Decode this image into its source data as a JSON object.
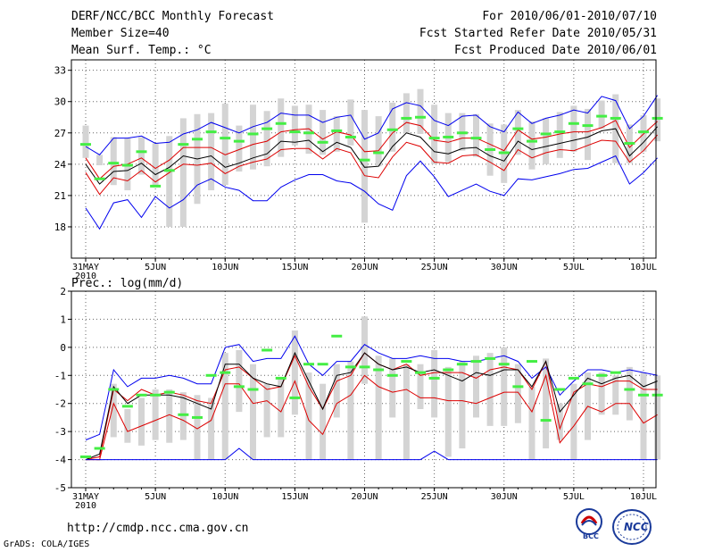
{
  "header": {
    "title": "DERF/NCC/BCC Monthly Forecast",
    "member_size": "Member Size=40",
    "variable": "Mean Surf. Temp.: °C",
    "period": "For 2010/06/01-2010/07/10",
    "started": "Fcst Started Refer Date 2010/05/31",
    "produced": "Fcst Produced Date 2010/06/01"
  },
  "footer": {
    "url": "http://cmdp.ncc.cma.gov.cn",
    "grads": "GrADS: COLA/IGES",
    "logo_bcc": "BCC",
    "logo_ncc": "NCC"
  },
  "colors": {
    "envelope": "#0000ee",
    "spread": "#dd0000",
    "mean": "#000000",
    "box": "#d4d4d4",
    "observed": "#44ee44"
  },
  "chart_data": [
    {
      "type": "box",
      "title": "Mean Surf. Temp.: °C",
      "x_tick_labels": [
        "31MAY\n2010",
        "5JUN",
        "10JUN",
        "15JUN",
        "20JUN",
        "25JUN",
        "30JUN",
        "5JUL",
        "10JUL"
      ],
      "x_tick_index": [
        0,
        5,
        10,
        15,
        20,
        25,
        30,
        35,
        40
      ],
      "ylim": [
        15,
        34
      ],
      "yticks": [
        18,
        21,
        24,
        27,
        30,
        33
      ],
      "days": 40,
      "grid": "dotted",
      "series": [
        {
          "name": "max",
          "color": "blue",
          "values": [
            25.7,
            24.9,
            26.5,
            26.5,
            26.7,
            26.0,
            26.1,
            26.9,
            27.3,
            28.0,
            27.5,
            27.0,
            27.6,
            28.0,
            28.9,
            28.7,
            28.7,
            28.0,
            28.5,
            28.7,
            26.4,
            27.0,
            29.3,
            29.9,
            29.6,
            28.2,
            27.7,
            28.6,
            28.7,
            27.6,
            27.1,
            29.0,
            27.9,
            28.4,
            28.7,
            29.2,
            28.9,
            30.5,
            30.1,
            27.4,
            28.6,
            30.6
          ]
        },
        {
          "name": "upper",
          "color": "red",
          "values": [
            24.6,
            22.6,
            23.8,
            24.0,
            24.6,
            23.6,
            24.4,
            25.6,
            25.6,
            25.6,
            24.9,
            25.4,
            25.9,
            26.2,
            27.1,
            27.3,
            27.4,
            26.4,
            27.1,
            26.8,
            25.2,
            25.3,
            27.0,
            28.0,
            27.7,
            26.3,
            26.1,
            26.5,
            26.5,
            25.9,
            25.3,
            27.3,
            26.4,
            26.6,
            26.9,
            27.1,
            27.1,
            27.5,
            28.2,
            25.6,
            26.9,
            28.1
          ]
        },
        {
          "name": "mean",
          "color": "black",
          "values": [
            24.0,
            22.1,
            23.3,
            23.4,
            24.1,
            23.0,
            23.7,
            24.8,
            24.5,
            24.8,
            23.7,
            24.1,
            24.6,
            25.0,
            26.2,
            26.1,
            26.3,
            25.2,
            26.1,
            25.6,
            23.7,
            23.8,
            25.7,
            27.0,
            26.6,
            25.2,
            25.0,
            25.5,
            25.6,
            24.8,
            24.3,
            26.2,
            25.4,
            25.7,
            26.0,
            26.3,
            26.6,
            27.2,
            27.4,
            24.8,
            26.1,
            27.6
          ]
        },
        {
          "name": "lower",
          "color": "red",
          "values": [
            23.2,
            21.1,
            22.7,
            22.4,
            23.4,
            22.3,
            23.2,
            24.0,
            23.9,
            24.1,
            23.1,
            23.8,
            24.2,
            24.5,
            25.4,
            25.5,
            25.5,
            24.5,
            25.5,
            25.1,
            22.9,
            22.7,
            24.7,
            26.1,
            25.7,
            24.2,
            24.1,
            24.8,
            24.9,
            24.2,
            23.4,
            25.4,
            24.6,
            25.1,
            25.4,
            25.3,
            25.8,
            26.3,
            26.2,
            24.2,
            25.3,
            26.8
          ]
        },
        {
          "name": "min",
          "color": "blue",
          "values": [
            19.8,
            17.8,
            20.3,
            20.6,
            18.9,
            20.9,
            19.8,
            20.6,
            22.0,
            22.6,
            21.8,
            21.5,
            20.5,
            20.5,
            21.8,
            22.5,
            23.0,
            23.0,
            22.4,
            22.2,
            21.4,
            20.2,
            19.6,
            22.9,
            24.3,
            22.8,
            20.9,
            21.5,
            22.1,
            21.4,
            21.0,
            22.6,
            22.5,
            22.8,
            23.1,
            23.5,
            23.6,
            24.2,
            24.8,
            22.1,
            23.2,
            24.6
          ]
        },
        {
          "name": "box_high",
          "color": "gray",
          "values": [
            27.7,
            24.9,
            26.6,
            26.5,
            26.6,
            26.0,
            26.7,
            28.4,
            28.8,
            28.9,
            29.8,
            27.7,
            29.7,
            29.1,
            30.3,
            29.6,
            29.7,
            29.2,
            28.6,
            30.2,
            29.2,
            28.6,
            29.9,
            30.8,
            31.2,
            29.7,
            28.9,
            28.9,
            28.8,
            27.9,
            27.8,
            29.2,
            28.1,
            28.4,
            29.0,
            29.6,
            29.3,
            30.1,
            30.7,
            27.8,
            28.7,
            30.3
          ]
        },
        {
          "name": "box_low",
          "color": "gray",
          "values": [
            24.6,
            23.9,
            22.0,
            21.5,
            23.0,
            22.0,
            18.0,
            18.0,
            20.2,
            21.5,
            22.0,
            23.3,
            23.5,
            23.8,
            24.7,
            25.8,
            25.0,
            24.9,
            25.2,
            25.8,
            18.4,
            23.8,
            25.2,
            27.0,
            26.9,
            24.0,
            24.2,
            25.3,
            24.7,
            22.9,
            22.2,
            24.9,
            23.5,
            24.0,
            24.6,
            25.2,
            24.4,
            27.4,
            24.1,
            24.1,
            25.2,
            26.2
          ]
        },
        {
          "name": "observed",
          "color": "green",
          "values": [
            25.9,
            22.6,
            24.1,
            23.9,
            25.2,
            21.9,
            23.4,
            25.9,
            26.4,
            27.1,
            26.5,
            26.2,
            26.9,
            27.4,
            27.9,
            27.1,
            27.0,
            26.1,
            27.2,
            26.6,
            24.4,
            25.1,
            27.3,
            28.4,
            28.5,
            26.5,
            26.6,
            27.0,
            26.5,
            25.4,
            25.1,
            27.4,
            26.2,
            26.9,
            27.1,
            27.9,
            27.7,
            28.6,
            28.4,
            26.0,
            27.1,
            28.4
          ]
        }
      ]
    },
    {
      "type": "box",
      "title": "Prec.: log(mm/d)",
      "x_tick_labels": [
        "31MAY\n2010",
        "5JUN",
        "10JUN",
        "15JUN",
        "20JUN",
        "25JUN",
        "30JUN",
        "5JUL",
        "10JUL"
      ],
      "x_tick_index": [
        0,
        5,
        10,
        15,
        20,
        25,
        30,
        35,
        40
      ],
      "ylim": [
        -5,
        2
      ],
      "yticks": [
        -5,
        -4,
        -3,
        -2,
        -1,
        0,
        1,
        2
      ],
      "days": 40,
      "grid": "dotted",
      "series": [
        {
          "name": "max",
          "color": "blue",
          "values": [
            -3.3,
            -3.1,
            -0.8,
            -1.4,
            -1.1,
            -1.1,
            -1.0,
            -1.1,
            -1.3,
            -1.3,
            -0.0,
            0.1,
            -0.5,
            -0.4,
            -0.4,
            0.4,
            -0.6,
            -1.0,
            -0.5,
            -0.5,
            0.1,
            -0.2,
            -0.4,
            -0.4,
            -0.3,
            -0.4,
            -0.4,
            -0.5,
            -0.5,
            -0.4,
            -0.3,
            -0.5,
            -1.1,
            -0.7,
            -1.7,
            -1.2,
            -0.8,
            -0.8,
            -0.9,
            -0.8,
            -0.9,
            -1.0
          ]
        },
        {
          "name": "upper",
          "color": "red",
          "values": [
            -4.0,
            -3.9,
            -1.5,
            -1.9,
            -1.5,
            -1.7,
            -1.6,
            -1.7,
            -1.9,
            -2.0,
            -0.8,
            -0.7,
            -1.1,
            -1.5,
            -1.4,
            -0.3,
            -1.4,
            -2.2,
            -1.2,
            -1.0,
            -0.2,
            -0.6,
            -0.8,
            -0.6,
            -1.0,
            -0.9,
            -0.9,
            -0.9,
            -1.1,
            -0.8,
            -0.7,
            -0.8,
            -1.5,
            -0.5,
            -2.9,
            -1.6,
            -1.3,
            -1.4,
            -1.2,
            -1.2,
            -1.5,
            -1.5
          ]
        },
        {
          "name": "mean",
          "color": "black",
          "values": [
            -4.0,
            -3.8,
            -1.4,
            -2.0,
            -1.7,
            -1.7,
            -1.7,
            -1.8,
            -2.0,
            -2.2,
            -0.6,
            -0.6,
            -1.1,
            -1.3,
            -1.4,
            -0.2,
            -1.2,
            -2.2,
            -1.0,
            -0.9,
            -0.2,
            -0.6,
            -0.8,
            -0.7,
            -0.9,
            -0.8,
            -1.0,
            -1.2,
            -0.9,
            -1.0,
            -0.8,
            -0.8,
            -1.4,
            -0.5,
            -2.3,
            -1.7,
            -1.1,
            -1.3,
            -1.1,
            -1.0,
            -1.4,
            -1.2
          ]
        },
        {
          "name": "lower",
          "color": "red",
          "values": [
            -4.0,
            -4.0,
            -2.0,
            -3.0,
            -2.8,
            -2.6,
            -2.4,
            -2.6,
            -2.9,
            -2.6,
            -1.3,
            -1.3,
            -2.0,
            -1.9,
            -2.3,
            -1.2,
            -2.6,
            -3.1,
            -2.0,
            -1.7,
            -1.0,
            -1.4,
            -1.6,
            -1.5,
            -1.8,
            -1.8,
            -1.9,
            -1.9,
            -2.0,
            -1.8,
            -1.6,
            -1.6,
            -2.3,
            -1.0,
            -3.4,
            -2.8,
            -2.1,
            -2.3,
            -2.0,
            -2.0,
            -2.7,
            -2.4
          ]
        },
        {
          "name": "min",
          "color": "blue",
          "values": [
            -4.0,
            -4.0,
            -4.0,
            -4.0,
            -4.0,
            -4.0,
            -4.0,
            -4.0,
            -4.0,
            -4.0,
            -4.0,
            -3.6,
            -4.0,
            -4.0,
            -4.0,
            -4.0,
            -4.0,
            -4.0,
            -4.0,
            -4.0,
            -4.0,
            -4.0,
            -4.0,
            -4.0,
            -4.0,
            -3.7,
            -4.0,
            -4.0,
            -4.0,
            -4.0,
            -4.0,
            -4.0,
            -4.0,
            -4.0,
            -4.0,
            -4.0,
            -4.0,
            -4.0,
            -4.0,
            -4.0,
            -4.0,
            -4.0
          ]
        },
        {
          "name": "box_high",
          "color": "gray",
          "values": [
            -4.0,
            -4.0,
            -1.3,
            -2.2,
            -1.8,
            -1.5,
            -1.5,
            -1.6,
            -1.7,
            -1.8,
            -0.2,
            -0.1,
            -0.6,
            -1.3,
            -1.1,
            0.6,
            -0.9,
            -1.3,
            -0.6,
            -0.5,
            1.1,
            -0.3,
            -0.4,
            -0.6,
            -0.6,
            -0.1,
            -0.7,
            -0.5,
            -0.3,
            -0.2,
            0.0,
            -0.6,
            -1.4,
            -0.4,
            -2.0,
            -1.3,
            -0.9,
            -0.9,
            -1.0,
            -0.7,
            -0.9,
            -1.0
          ]
        },
        {
          "name": "box_low",
          "color": "gray",
          "values": [
            -4.0,
            -4.0,
            -3.2,
            -3.4,
            -3.5,
            -3.3,
            -3.4,
            -3.3,
            -4.0,
            -4.0,
            -4.0,
            -2.3,
            -4.0,
            -3.2,
            -3.2,
            -2.4,
            -4.0,
            -4.0,
            -2.5,
            -4.0,
            -1.3,
            -4.0,
            -2.5,
            -4.0,
            -2.2,
            -2.5,
            -3.9,
            -3.6,
            -2.5,
            -2.8,
            -2.8,
            -2.7,
            -4.0,
            -3.6,
            -3.3,
            -4.0,
            -3.3,
            -2.4,
            -2.4,
            -2.6,
            -4.0,
            -4.0
          ]
        },
        {
          "name": "observed",
          "color": "green",
          "values": [
            -3.9,
            -3.6,
            -1.5,
            -2.1,
            -1.7,
            -1.7,
            -1.6,
            -2.4,
            -2.5,
            -1.0,
            -0.9,
            -1.4,
            -1.5,
            -0.1,
            -1.1,
            -1.8,
            -0.6,
            -0.6,
            0.4,
            -0.7,
            -0.7,
            -0.8,
            -1.0,
            -0.5,
            -0.9,
            -1.1,
            -0.8,
            -0.6,
            -0.5,
            -0.4,
            -0.6,
            -1.4,
            -0.5,
            -2.6,
            -1.5,
            -1.1,
            -1.3,
            -1.0,
            -0.9,
            -1.5,
            -1.7,
            -1.7
          ]
        }
      ]
    }
  ]
}
